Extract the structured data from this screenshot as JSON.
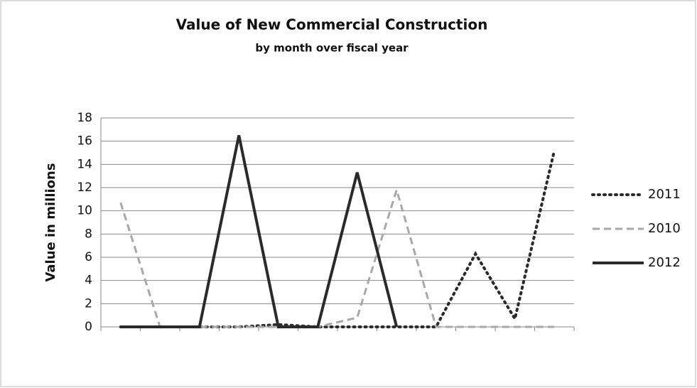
{
  "chart_data": {
    "type": "line",
    "title": "Value of New Commercial Construction",
    "subtitle": "by month over fiscal year",
    "y_label": "Value in millions",
    "categories": [
      null,
      null,
      null,
      null,
      null,
      null,
      null,
      null,
      null,
      null,
      null,
      null
    ],
    "series": [
      {
        "name": "2011",
        "color": "#2a2a2a",
        "dash": "dotted",
        "values": [
          0,
          0,
          0,
          0,
          0.2,
          0,
          0,
          0,
          0,
          6.3,
          0.7,
          15.2
        ]
      },
      {
        "name": "2010",
        "color": "#a8a8a8",
        "dash": "dashed",
        "values": [
          10.7,
          0,
          0,
          0,
          0,
          0,
          0.8,
          11.8,
          0,
          0,
          0,
          0
        ]
      },
      {
        "name": "2012",
        "color": "#2a2a2a",
        "dash": "solid",
        "values": [
          0,
          0,
          0,
          16.5,
          0,
          0,
          13.3,
          0,
          null,
          null,
          null,
          null
        ]
      }
    ],
    "ylim": [
      0,
      18
    ],
    "yticks": [
      0,
      2,
      4,
      6,
      8,
      10,
      12,
      14,
      16,
      18
    ],
    "grid": true,
    "legend": "right"
  }
}
